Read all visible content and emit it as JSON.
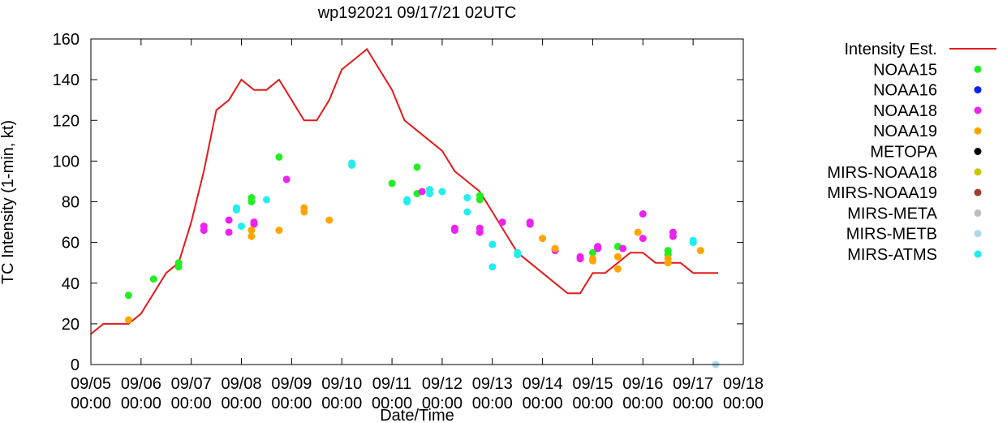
{
  "chart_data": {
    "type": "scatter",
    "title": "wp192021 09/17/21 02UTC",
    "xlabel": "Date/Time",
    "ylabel": "TC Intensity (1-min, kt)",
    "ylim": [
      0,
      160
    ],
    "xlim": [
      0,
      13
    ],
    "yticks": [
      0,
      20,
      40,
      60,
      80,
      100,
      120,
      140,
      160
    ],
    "xtick_dates": [
      "09/05",
      "09/06",
      "09/07",
      "09/08",
      "09/09",
      "09/10",
      "09/11",
      "09/12",
      "09/13",
      "09/14",
      "09/15",
      "09/16",
      "09/17",
      "09/18"
    ],
    "xtick_times": [
      "00:00",
      "00:00",
      "00:00",
      "00:00",
      "00:00",
      "00:00",
      "00:00",
      "00:00",
      "00:00",
      "00:00",
      "00:00",
      "00:00",
      "00:00",
      "00:00"
    ],
    "legend_position": "right",
    "legend": [
      {
        "name": "Intensity Est.",
        "color": "#e41a1c",
        "kind": "line"
      },
      {
        "name": "NOAA15",
        "color": "#22ee22",
        "kind": "point"
      },
      {
        "name": "NOAA16",
        "color": "#0022ee",
        "kind": "point"
      },
      {
        "name": "NOAA18",
        "color": "#ee22ee",
        "kind": "point"
      },
      {
        "name": "NOAA19",
        "color": "#ffa500",
        "kind": "point"
      },
      {
        "name": "METOPA",
        "color": "#000000",
        "kind": "point"
      },
      {
        "name": "MIRS-NOAA18",
        "color": "#c8c800",
        "kind": "point"
      },
      {
        "name": "MIRS-NOAA19",
        "color": "#a0402a",
        "kind": "point"
      },
      {
        "name": "MIRS-META",
        "color": "#bebebe",
        "kind": "point"
      },
      {
        "name": "MIRS-METB",
        "color": "#add8e6",
        "kind": "point"
      },
      {
        "name": "MIRS-ATMS",
        "color": "#22eeee",
        "kind": "point"
      }
    ],
    "intensity_line": {
      "x": [
        0.0,
        0.25,
        0.5,
        0.75,
        1.0,
        1.25,
        1.5,
        1.75,
        2.0,
        2.25,
        2.5,
        2.75,
        3.0,
        3.25,
        3.5,
        3.75,
        4.0,
        4.25,
        4.5,
        4.75,
        5.0,
        5.25,
        5.5,
        5.75,
        6.0,
        6.25,
        6.5,
        6.75,
        7.0,
        7.25,
        7.5,
        7.75,
        8.0,
        8.25,
        8.5,
        8.75,
        9.0,
        9.25,
        9.5,
        9.75,
        10.0,
        10.25,
        10.5,
        10.75,
        11.0,
        11.25,
        11.5,
        11.75,
        12.0,
        12.25,
        12.5
      ],
      "y": [
        15,
        20,
        20,
        20,
        25,
        35,
        45,
        50,
        70,
        95,
        125,
        130,
        140,
        135,
        135,
        140,
        130,
        120,
        120,
        130,
        145,
        150,
        155,
        145,
        135,
        120,
        115,
        110,
        105,
        95,
        90,
        85,
        75,
        65,
        55,
        50,
        45,
        40,
        35,
        35,
        45,
        45,
        50,
        55,
        55,
        50,
        50,
        50,
        45,
        45,
        45
      ]
    },
    "series": [
      {
        "name": "NOAA15",
        "color": "#22ee22",
        "x": [
          0.75,
          1.25,
          1.75,
          1.75,
          3.2,
          3.2,
          3.75,
          6.0,
          6.5,
          6.5,
          7.75,
          7.75,
          10.0,
          10.5,
          11.5,
          11.5
        ],
        "y": [
          34,
          42,
          50,
          48,
          82,
          80,
          102,
          89,
          97,
          84,
          83,
          81,
          55,
          58,
          56,
          54
        ]
      },
      {
        "name": "NOAA18",
        "color": "#ee22ee",
        "x": [
          2.25,
          2.25,
          2.75,
          2.75,
          3.25,
          3.25,
          3.9,
          6.6,
          7.25,
          7.25,
          7.75,
          7.75,
          8.2,
          8.75,
          8.75,
          9.25,
          9.25,
          9.75,
          9.75,
          10.1,
          10.1,
          10.6,
          11.0,
          11.0,
          11.6,
          11.6
        ],
        "y": [
          68,
          66,
          71,
          65,
          70,
          69,
          91,
          85,
          67,
          66,
          67,
          65,
          70,
          70,
          69,
          57,
          56,
          53,
          52,
          58,
          57,
          57,
          74,
          62,
          65,
          63
        ]
      },
      {
        "name": "NOAA19",
        "color": "#ffa500",
        "x": [
          0.75,
          3.2,
          3.2,
          3.75,
          4.25,
          4.25,
          4.75,
          9.0,
          9.25,
          10.0,
          10.0,
          10.5,
          10.5,
          10.9,
          11.5,
          11.5,
          12.15
        ],
        "y": [
          22,
          66,
          63,
          66,
          77,
          75,
          71,
          62,
          57,
          52,
          51,
          53,
          47,
          65,
          52,
          50,
          56
        ]
      },
      {
        "name": "MIRS-ATMS",
        "color": "#22eeee",
        "x": [
          2.9,
          2.9,
          3.0,
          3.5,
          5.2,
          5.2,
          6.3,
          6.3,
          6.75,
          6.75,
          7.0,
          7.5,
          7.5,
          8.0,
          8.0,
          8.5,
          8.5,
          12.0,
          12.0
        ],
        "y": [
          77,
          76,
          68,
          81,
          99,
          98,
          81,
          80,
          86,
          84,
          85,
          82,
          75,
          59,
          48,
          55,
          54,
          61,
          60
        ]
      },
      {
        "name": "MIRS-METB",
        "color": "#add8e6",
        "x": [
          12.45
        ],
        "y": [
          0
        ]
      }
    ]
  }
}
